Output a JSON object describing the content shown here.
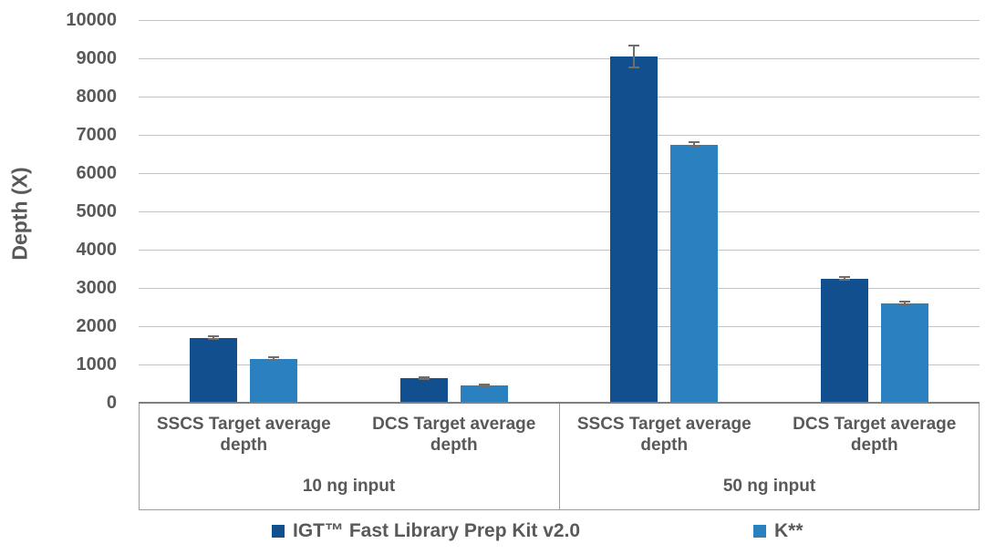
{
  "chart_data": {
    "type": "bar",
    "title": "",
    "ylabel": "Depth (X)",
    "ylim": [
      0,
      10000
    ],
    "ytick_step": 1000,
    "grid": true,
    "legend_position": "bottom",
    "groups": [
      {
        "label": "10 ng input",
        "categories": [
          "SSCS Target average depth",
          "DCS Target average depth"
        ]
      },
      {
        "label": "50 ng input",
        "categories": [
          "SSCS Target average depth",
          "DCS Target average depth"
        ]
      }
    ],
    "series": [
      {
        "name": "IGT™ Fast Library Prep Kit v2.0",
        "color": "#124F8E",
        "values": [
          1700,
          650,
          9050,
          3250
        ],
        "errors": [
          40,
          25,
          280,
          30
        ]
      },
      {
        "name": "K**",
        "color": "#2B80BF",
        "values": [
          1150,
          450,
          6750,
          2600
        ],
        "errors": [
          35,
          20,
          60,
          50
        ]
      }
    ],
    "colors": {
      "axis_text": "#595959",
      "gridline": "#C3C3C3",
      "axis_line": "#7F7F7F",
      "error_bar": "#6E6E6E"
    }
  }
}
